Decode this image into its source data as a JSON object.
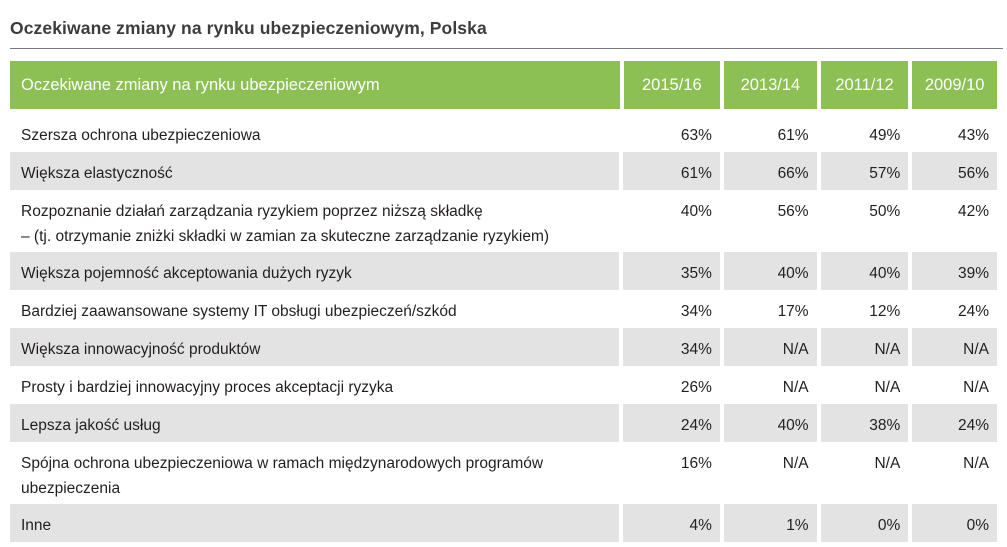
{
  "title": "Oczekiwane zmiany na rynku ubezpieczeniowym, Polska",
  "colors": {
    "header_bg": "#8dc054",
    "header_text": "#ffffff",
    "row_shade": "#e3e3e3"
  },
  "table": {
    "headers": [
      "Oczekiwane zmiany na rynku ubezpieczeniowym",
      "2015/16",
      "2013/14",
      "2011/12",
      "2009/10"
    ],
    "rows": [
      {
        "label1": "Szersza ochrona ubezpieczeniowa",
        "label2": "",
        "v": [
          "63%",
          "61%",
          "49%",
          "43%"
        ]
      },
      {
        "label1": "Większa elastyczność",
        "label2": "",
        "v": [
          "61%",
          "66%",
          "57%",
          "56%"
        ]
      },
      {
        "label1": "Rozpoznanie działań zarządzania ryzykiem poprzez niższą składkę",
        "label2": "– (tj. otrzymanie zniżki składki w zamian za skuteczne zarządzanie ryzykiem)",
        "v": [
          "40%",
          "56%",
          "50%",
          "42%"
        ]
      },
      {
        "label1": "Większa pojemność akceptowania dużych ryzyk",
        "label2": "",
        "v": [
          "35%",
          "40%",
          "40%",
          "39%"
        ]
      },
      {
        "label1": "Bardziej zaawansowane systemy IT obsługi ubezpieczeń/szkód",
        "label2": "",
        "v": [
          "34%",
          "17%",
          "12%",
          "24%"
        ]
      },
      {
        "label1": "Większa innowacyjność produktów",
        "label2": "",
        "v": [
          "34%",
          "N/A",
          "N/A",
          "N/A"
        ]
      },
      {
        "label1": "Prosty i bardziej innowacyjny proces akceptacji ryzyka",
        "label2": "",
        "v": [
          "26%",
          "N/A",
          "N/A",
          "N/A"
        ]
      },
      {
        "label1": "Lepsza jakość usług",
        "label2": "",
        "v": [
          "24%",
          "40%",
          "38%",
          "24%"
        ]
      },
      {
        "label1": "Spójna ochrona ubezpieczeniowa w ramach międzynarodowych programów",
        "label2": "ubezpieczenia",
        "v": [
          "16%",
          "N/A",
          "N/A",
          "N/A"
        ]
      },
      {
        "label1": "Inne",
        "label2": "",
        "v": [
          "4%",
          "1%",
          "0%",
          "0%"
        ]
      }
    ]
  }
}
